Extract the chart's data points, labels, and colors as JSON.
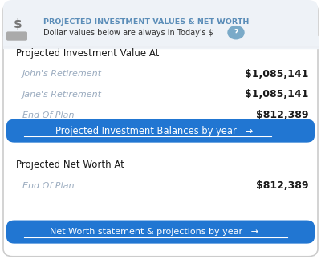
{
  "header_title": "PROJECTED INVESTMENT VALUES & NET WORTH",
  "header_subtitle": "Dollar values below are always in Today's $",
  "header_title_color": "#5b8db8",
  "header_bg_color": "#eef2f7",
  "section1_heading": "Projected Investment Value At",
  "section1_rows": [
    {
      "label": "John's Retirement",
      "value": "$1,085,141"
    },
    {
      "label": "Jane's Retirement",
      "value": "$1,085,141"
    },
    {
      "label": "End Of Plan",
      "value": "$812,389"
    }
  ],
  "label_color": "#9aabbf",
  "value_color": "#1a1a1a",
  "btn1_text": "Projected Investment Balances by year",
  "btn1_arrow": "→",
  "btn_bg_color": "#2176d2",
  "btn_text_color": "#ffffff",
  "section2_heading": "Projected Net Worth At",
  "section2_rows": [
    {
      "label": "End Of Plan",
      "value": "$812,389"
    }
  ],
  "btn2_text": "Net Worth statement & projections by year",
  "btn2_arrow": "→",
  "bg_color": "#ffffff",
  "border_color": "#cccccc",
  "heading_color": "#1a1a1a"
}
